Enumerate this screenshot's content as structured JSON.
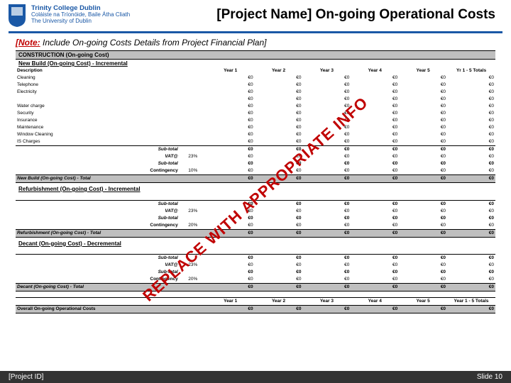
{
  "header": {
    "org_main": "Trinity College Dublin",
    "org_sub1": "Coláiste na Tríonóide, Baile Átha Cliath",
    "org_sub2": "The University of Dublin",
    "title": "[Project Name] On-going Operational Costs"
  },
  "note": {
    "label": "[Note:",
    "text": " Include On-going Costs Details from Project Financial Plan]"
  },
  "watermark": "REPLACE WITH APPROPRIATE INFO",
  "cols": {
    "pct_blank": "",
    "y1": "Year 1",
    "y2": "Year 2",
    "y3": "Year 3",
    "y4": "Year 4",
    "y5": "Year 5",
    "tot": "Yr 1 - 5 Totals"
  },
  "sectionA": {
    "title": "CONSTRUCTION (On-going Cost)",
    "sub": "New Build (On-going Cost) - Incremental",
    "desc": "Description",
    "rows": [
      {
        "l": "Cleaning"
      },
      {
        "l": "Telephone"
      },
      {
        "l": "Electricity"
      },
      {
        "l": ""
      },
      {
        "l": "Water charge"
      },
      {
        "l": "Security"
      },
      {
        "l": "Insurance"
      },
      {
        "l": "Maintenance"
      },
      {
        "l": "Window Cleaning"
      },
      {
        "l": "IS Charges"
      }
    ],
    "subtotal": {
      "l": "Sub-total"
    },
    "vat": {
      "l": "VAT@",
      "p": "23%"
    },
    "subtotal2": {
      "l": "Sub-total"
    },
    "cont": {
      "l": "Contingency",
      "p": "10%"
    },
    "total": {
      "l": "New Build (On-going Cost) - Total"
    }
  },
  "sectionB": {
    "sub": "Refurbishment (On-going Cost) - Incremental",
    "subtotal": {
      "l": "Sub-total"
    },
    "vat": {
      "l": "VAT@",
      "p": "23%"
    },
    "subtotal2": {
      "l": "Sub-total"
    },
    "cont": {
      "l": "Contingency",
      "p": "20%"
    },
    "total": {
      "l": "Refurbishment (On-going Cost) - Total"
    }
  },
  "sectionC": {
    "sub": "Decant (On-going Cost) - Decremental",
    "subtotal": {
      "l": "Sub-total"
    },
    "vat": {
      "l": "VAT@",
      "p": "23%"
    },
    "subtotal2": {
      "l": "Sub-total"
    },
    "cont": {
      "l": "Contingency",
      "p": "20%"
    },
    "total": {
      "l": "Decant (On-going Cost) - Total"
    }
  },
  "summary": {
    "head_tot": "Year 1 - 5 Totals",
    "overall": {
      "l": "Overall On-going Operational Costs"
    }
  },
  "zero": "€0",
  "footer": {
    "left": "[Project ID]",
    "right": "Slide 10"
  }
}
